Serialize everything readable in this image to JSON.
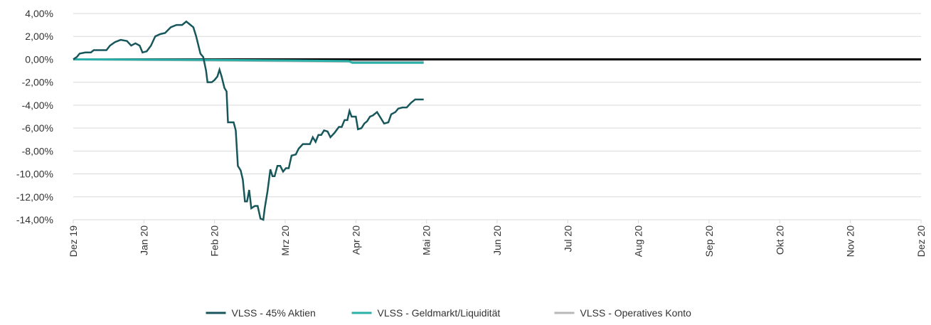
{
  "chart_data": {
    "type": "line",
    "xlim": [
      0,
      12
    ],
    "xticks": [
      {
        "value": 0,
        "label": "Dez 19"
      },
      {
        "value": 1,
        "label": "Jan 20"
      },
      {
        "value": 2,
        "label": "Feb 20"
      },
      {
        "value": 3,
        "label": "Mrz 20"
      },
      {
        "value": 4,
        "label": "Apr 20"
      },
      {
        "value": 5,
        "label": "Mai 20"
      },
      {
        "value": 6,
        "label": "Jun 20"
      },
      {
        "value": 7,
        "label": "Jul 20"
      },
      {
        "value": 8,
        "label": "Aug 20"
      },
      {
        "value": 9,
        "label": "Sep 20"
      },
      {
        "value": 10,
        "label": "Okt 20"
      },
      {
        "value": 11,
        "label": "Nov 20"
      },
      {
        "value": 12,
        "label": "Dez 20"
      }
    ],
    "ylim": [
      -14,
      4
    ],
    "yticks": [
      {
        "value": 4,
        "label": "4,00%"
      },
      {
        "value": 2,
        "label": "2,00%"
      },
      {
        "value": 0,
        "label": "0,00%"
      },
      {
        "value": -2,
        "label": "-2,00%"
      },
      {
        "value": -4,
        "label": "-4,00%"
      },
      {
        "value": -6,
        "label": "-6,00%"
      },
      {
        "value": -8,
        "label": "-8,00%"
      },
      {
        "value": -10,
        "label": "-10,00%"
      },
      {
        "value": -12,
        "label": "-12,00%"
      },
      {
        "value": -14,
        "label": "-14,00%"
      }
    ],
    "grid": true,
    "legend": "bottom",
    "series": [
      {
        "name": "VLSS - 45% Aktien",
        "color": "#17575b",
        "x": [
          0,
          0.05,
          0.09,
          0.17,
          0.25,
          0.29,
          0.37,
          0.47,
          0.52,
          0.59,
          0.67,
          0.76,
          0.82,
          0.88,
          0.94,
          0.98,
          1.04,
          1.1,
          1.16,
          1.23,
          1.3,
          1.38,
          1.46,
          1.54,
          1.6,
          1.66,
          1.7,
          1.74,
          1.8,
          1.84,
          1.88,
          1.9,
          1.96,
          2.0,
          2.04,
          2.07,
          2.1,
          2.14,
          2.17,
          2.19,
          2.27,
          2.3,
          2.33,
          2.37,
          2.4,
          2.43,
          2.46,
          2.49,
          2.52,
          2.57,
          2.61,
          2.65,
          2.69,
          2.71,
          2.75,
          2.79,
          2.82,
          2.85,
          2.89,
          2.93,
          2.97,
          3.01,
          3.05,
          3.09,
          3.15,
          3.19,
          3.25,
          3.35,
          3.39,
          3.43,
          3.47,
          3.51,
          3.55,
          3.6,
          3.64,
          3.7,
          3.76,
          3.8,
          3.84,
          3.88,
          3.91,
          3.94,
          4.0,
          4.03,
          4.08,
          4.12,
          4.16,
          4.2,
          4.24,
          4.3,
          4.34,
          4.4,
          4.46,
          4.5,
          4.56,
          4.6,
          4.66,
          4.72,
          4.78,
          4.84,
          4.96
        ],
        "values": [
          0,
          0.2,
          0.5,
          0.6,
          0.6,
          0.8,
          0.8,
          0.8,
          1.2,
          1.5,
          1.7,
          1.6,
          1.2,
          1.4,
          1.2,
          0.6,
          0.7,
          1.2,
          2.0,
          2.2,
          2.3,
          2.8,
          3.0,
          3.0,
          3.3,
          3.0,
          2.8,
          2.0,
          0.5,
          0.2,
          -1.0,
          -2.0,
          -2.0,
          -1.8,
          -1.5,
          -0.9,
          -1.5,
          -2.5,
          -2.8,
          -5.5,
          -5.5,
          -6.2,
          -9.3,
          -9.7,
          -10.5,
          -12.4,
          -12.4,
          -11.4,
          -13.0,
          -12.8,
          -12.8,
          -13.9,
          -14.0,
          -13.0,
          -11.5,
          -9.6,
          -10.2,
          -10.2,
          -9.3,
          -9.3,
          -9.8,
          -9.5,
          -9.5,
          -8.4,
          -8.3,
          -7.8,
          -7.4,
          -7.4,
          -6.8,
          -7.2,
          -6.6,
          -6.6,
          -6.2,
          -6.3,
          -6.8,
          -6.4,
          -5.9,
          -5.9,
          -5.3,
          -5.3,
          -4.5,
          -5.0,
          -5.0,
          -6.1,
          -6.0,
          -5.6,
          -5.4,
          -5.0,
          -4.9,
          -4.6,
          -5.0,
          -5.6,
          -5.5,
          -4.8,
          -4.6,
          -4.3,
          -4.2,
          -4.2,
          -3.8,
          -3.5,
          -3.5
        ]
      },
      {
        "name": "VLSS - Geldmarkt/Liquidität",
        "color": "#2ab0a8",
        "x": [
          0,
          2,
          3,
          3.9,
          3.95,
          4.96
        ],
        "values": [
          0,
          -0.05,
          -0.1,
          -0.15,
          -0.3,
          -0.3
        ]
      },
      {
        "name": "VLSS - Operatives Konto",
        "color": "#b8b8b8",
        "x": [
          0,
          1,
          2,
          3,
          3.9,
          4.96
        ],
        "values": [
          0,
          -0.05,
          -0.1,
          -0.15,
          -0.2,
          -0.2
        ]
      }
    ]
  }
}
